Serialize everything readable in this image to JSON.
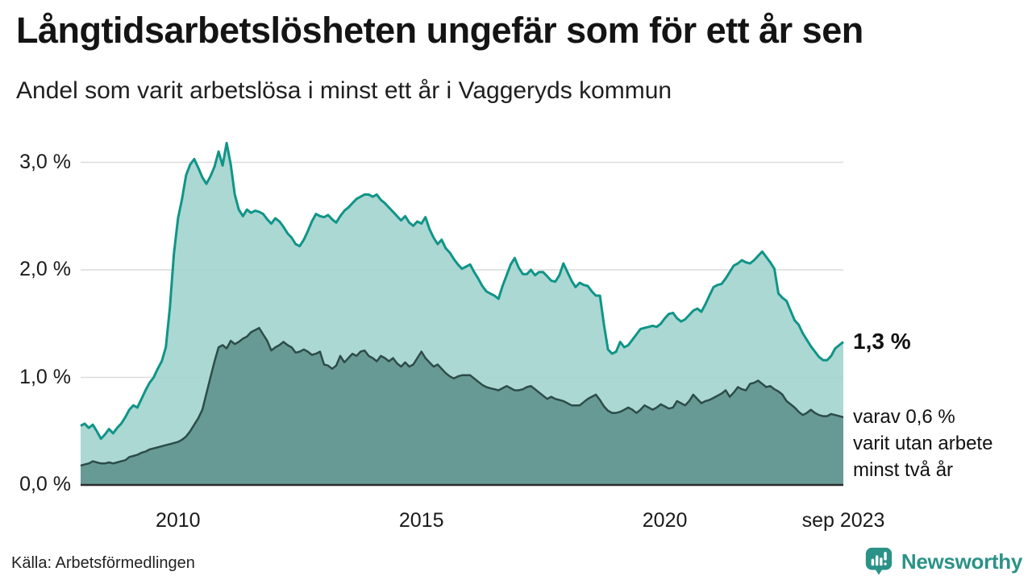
{
  "header": {
    "title": "Långtidsarbetslösheten ungefär som för ett år sen",
    "subtitle": "Andel som varit arbetslösa i minst ett år i Vaggeryds kommun"
  },
  "chart_data": {
    "type": "area",
    "title": "Långtidsarbetslösheten ungefär som för ett år sen",
    "subtitle": "Andel som varit arbetslösa i minst ett år i Vaggeryds kommun",
    "unit": "%",
    "x_start": "2008-01",
    "x_end": "2023-09",
    "x_interval": "monthly",
    "ylim": [
      0,
      3.3
    ],
    "grid": "horizontal",
    "yticks": [
      {
        "label": "0,0 %",
        "value": 0
      },
      {
        "label": "1,0 %",
        "value": 1
      },
      {
        "label": "2,0 %",
        "value": 2
      },
      {
        "label": "3,0 %",
        "value": 3
      }
    ],
    "xticks": [
      {
        "label": "2010",
        "month_index": 24
      },
      {
        "label": "2015",
        "month_index": 84
      },
      {
        "label": "2020",
        "month_index": 144
      },
      {
        "label": "sep 2023",
        "month_index": 188
      }
    ],
    "colors": {
      "series1_line": "#109488",
      "series1_fill": "#9fd3cc",
      "series2_line": "#2d4c49",
      "series2_fill": "#5f938e",
      "gridline": "#dcdcdc",
      "baseline": "#2b2b2b"
    },
    "series": [
      {
        "name": "Arbetslösa minst ett år",
        "end_value_label": "1,3 %",
        "values": [
          0.55,
          0.57,
          0.53,
          0.56,
          0.5,
          0.43,
          0.47,
          0.52,
          0.48,
          0.53,
          0.57,
          0.63,
          0.7,
          0.74,
          0.72,
          0.8,
          0.88,
          0.95,
          1.0,
          1.08,
          1.15,
          1.28,
          1.65,
          2.15,
          2.48,
          2.66,
          2.88,
          2.98,
          3.03,
          2.95,
          2.86,
          2.8,
          2.87,
          2.96,
          3.1,
          2.97,
          3.18,
          2.98,
          2.7,
          2.56,
          2.5,
          2.56,
          2.53,
          2.55,
          2.54,
          2.52,
          2.47,
          2.43,
          2.48,
          2.45,
          2.4,
          2.34,
          2.3,
          2.24,
          2.22,
          2.28,
          2.36,
          2.45,
          2.52,
          2.5,
          2.49,
          2.51,
          2.47,
          2.44,
          2.5,
          2.55,
          2.58,
          2.62,
          2.66,
          2.68,
          2.7,
          2.7,
          2.68,
          2.7,
          2.65,
          2.62,
          2.58,
          2.54,
          2.5,
          2.46,
          2.5,
          2.44,
          2.41,
          2.45,
          2.43,
          2.49,
          2.38,
          2.3,
          2.24,
          2.28,
          2.2,
          2.16,
          2.1,
          2.05,
          2.01,
          2.03,
          2.05,
          1.98,
          1.92,
          1.85,
          1.8,
          1.78,
          1.76,
          1.73,
          1.85,
          1.95,
          2.05,
          2.11,
          2.02,
          1.96,
          1.96,
          2.0,
          1.95,
          1.98,
          1.98,
          1.94,
          1.9,
          1.89,
          1.95,
          2.06,
          1.98,
          1.9,
          1.84,
          1.88,
          1.86,
          1.85,
          1.8,
          1.76,
          1.76,
          1.49,
          1.26,
          1.22,
          1.24,
          1.33,
          1.28,
          1.3,
          1.35,
          1.4,
          1.45,
          1.46,
          1.47,
          1.48,
          1.47,
          1.5,
          1.55,
          1.59,
          1.6,
          1.55,
          1.52,
          1.54,
          1.58,
          1.62,
          1.64,
          1.61,
          1.68,
          1.76,
          1.84,
          1.86,
          1.87,
          1.92,
          1.98,
          2.04,
          2.06,
          2.09,
          2.07,
          2.06,
          2.09,
          2.13,
          2.17,
          2.12,
          2.07,
          2.01,
          1.78,
          1.74,
          1.71,
          1.62,
          1.53,
          1.49,
          1.41,
          1.35,
          1.29,
          1.24,
          1.19,
          1.16,
          1.16,
          1.2,
          1.27,
          1.3,
          1.33
        ]
      },
      {
        "name": "Arbetslösa minst två år",
        "end_value_label": "0,6 %",
        "values": [
          0.18,
          0.19,
          0.2,
          0.22,
          0.21,
          0.2,
          0.2,
          0.21,
          0.2,
          0.21,
          0.22,
          0.23,
          0.26,
          0.27,
          0.28,
          0.3,
          0.31,
          0.33,
          0.34,
          0.35,
          0.36,
          0.37,
          0.38,
          0.39,
          0.4,
          0.42,
          0.45,
          0.5,
          0.56,
          0.62,
          0.7,
          0.85,
          1.0,
          1.15,
          1.28,
          1.3,
          1.27,
          1.34,
          1.31,
          1.33,
          1.36,
          1.38,
          1.42,
          1.44,
          1.46,
          1.4,
          1.34,
          1.25,
          1.28,
          1.3,
          1.33,
          1.3,
          1.28,
          1.23,
          1.24,
          1.26,
          1.24,
          1.21,
          1.22,
          1.24,
          1.12,
          1.11,
          1.08,
          1.11,
          1.2,
          1.14,
          1.18,
          1.22,
          1.2,
          1.24,
          1.25,
          1.2,
          1.18,
          1.15,
          1.2,
          1.18,
          1.15,
          1.18,
          1.13,
          1.1,
          1.14,
          1.1,
          1.12,
          1.18,
          1.24,
          1.18,
          1.14,
          1.1,
          1.12,
          1.08,
          1.04,
          1.01,
          0.99,
          1.01,
          1.02,
          1.02,
          1.02,
          0.99,
          0.96,
          0.93,
          0.91,
          0.9,
          0.89,
          0.88,
          0.9,
          0.92,
          0.9,
          0.88,
          0.88,
          0.89,
          0.91,
          0.92,
          0.89,
          0.86,
          0.83,
          0.8,
          0.82,
          0.8,
          0.79,
          0.78,
          0.76,
          0.74,
          0.74,
          0.74,
          0.77,
          0.8,
          0.82,
          0.84,
          0.79,
          0.73,
          0.69,
          0.67,
          0.67,
          0.68,
          0.7,
          0.72,
          0.7,
          0.67,
          0.7,
          0.74,
          0.72,
          0.7,
          0.72,
          0.75,
          0.73,
          0.71,
          0.72,
          0.78,
          0.76,
          0.74,
          0.78,
          0.84,
          0.8,
          0.76,
          0.78,
          0.79,
          0.81,
          0.83,
          0.85,
          0.88,
          0.82,
          0.86,
          0.91,
          0.89,
          0.88,
          0.94,
          0.95,
          0.97,
          0.94,
          0.91,
          0.92,
          0.89,
          0.87,
          0.84,
          0.78,
          0.75,
          0.72,
          0.68,
          0.65,
          0.67,
          0.7,
          0.67,
          0.65,
          0.64,
          0.64,
          0.66,
          0.65,
          0.64,
          0.63
        ]
      }
    ],
    "annotations": {
      "series1_end_label": "1,3 %",
      "series2_end_label": "varav 0,6 %\nvarit utan arbete\nminst två år"
    },
    "legend_position": "right-annotations"
  },
  "footer": {
    "source": "Källa: Arbetsförmedlingen",
    "brand": "Newsworthy"
  },
  "icons": {
    "brand_icon": "newsworthy-bar-chart-bubble"
  }
}
